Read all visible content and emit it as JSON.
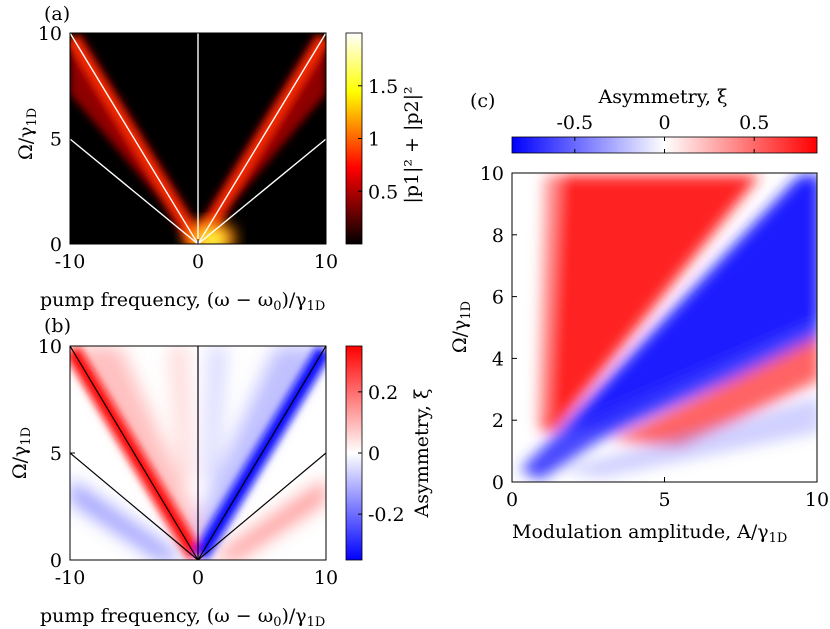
{
  "chart_data": [
    {
      "type": "heatmap",
      "panel_label": "(a)",
      "xlabel": "pump frequency, (ω − ω",
      "xlabel_sub": "0",
      "xlabel_tail": ")/γ",
      "xlabel_tail_sub": "1D",
      "ylabel": "Ω/γ",
      "ylabel_sub": "1D",
      "xlim": [
        -10,
        10
      ],
      "ylim": [
        0,
        10
      ],
      "xticks": [
        "-10",
        "0",
        "10"
      ],
      "xtick_values": [
        -10,
        0,
        10
      ],
      "yticks": [
        "0",
        "5",
        "10"
      ],
      "ytick_values": [
        0,
        5,
        10
      ],
      "colorbar": {
        "label": "|p1|² + |p2|²",
        "range": [
          0,
          2
        ],
        "ticks": [
          "0.5",
          "1",
          "1.5"
        ],
        "tick_values": [
          0.5,
          1,
          1.5
        ],
        "colormap": "hot"
      },
      "overlay_lines": [
        {
          "slope": 1,
          "description": "Ω = ±Δ"
        },
        {
          "slope": 0.5,
          "description": "Ω = ±Δ/2"
        }
      ],
      "line_color": "#ffffff",
      "vertical_line_x": 0
    },
    {
      "type": "heatmap",
      "panel_label": "(b)",
      "xlabel": "pump frequency, (ω − ω",
      "xlabel_sub": "0",
      "xlabel_tail": ")/γ",
      "xlabel_tail_sub": "1D",
      "ylabel": "Ω/γ",
      "ylabel_sub": "1D",
      "xlim": [
        -10,
        10
      ],
      "ylim": [
        0,
        10
      ],
      "xticks": [
        "-10",
        "0",
        "10"
      ],
      "xtick_values": [
        -10,
        0,
        10
      ],
      "yticks": [
        "0",
        "5",
        "10"
      ],
      "ytick_values": [
        0,
        5,
        10
      ],
      "colorbar": {
        "label": "Asymmetry, ξ",
        "range": [
          -0.35,
          0.35
        ],
        "ticks": [
          "-0.2",
          "0",
          "0.2"
        ],
        "tick_values": [
          -0.2,
          0,
          0.2
        ],
        "colormap": "bwr"
      },
      "overlay_lines": [
        {
          "slope": 1,
          "description": "Ω = ±Δ"
        },
        {
          "slope": 0.5,
          "description": "Ω = ±Δ/2"
        }
      ],
      "line_color": "#000000",
      "vertical_line_x": 0
    },
    {
      "type": "heatmap",
      "panel_label": "(c)",
      "xlabel": "Modulation amplitude, A/γ",
      "xlabel_sub": "1D",
      "ylabel": "Ω/γ",
      "ylabel_sub": "1D",
      "xlim": [
        0,
        10
      ],
      "ylim": [
        0,
        10
      ],
      "xticks": [
        "0",
        "5",
        "10"
      ],
      "xtick_values": [
        0,
        5,
        10
      ],
      "yticks": [
        "0",
        "2",
        "4",
        "6",
        "8",
        "10"
      ],
      "ytick_values": [
        0,
        2,
        4,
        6,
        8,
        10
      ],
      "colorbar": {
        "label": "Asymmetry, ξ",
        "range": [
          -0.85,
          0.85
        ],
        "ticks": [
          "-0.5",
          "0",
          "0.5"
        ],
        "tick_values": [
          -0.5,
          0,
          0.5
        ],
        "colormap": "bwr",
        "orientation": "horizontal"
      }
    }
  ],
  "colors": {
    "red": "#ff0000",
    "blue": "#0000ff",
    "white": "#ffffff",
    "black": "#000000"
  }
}
